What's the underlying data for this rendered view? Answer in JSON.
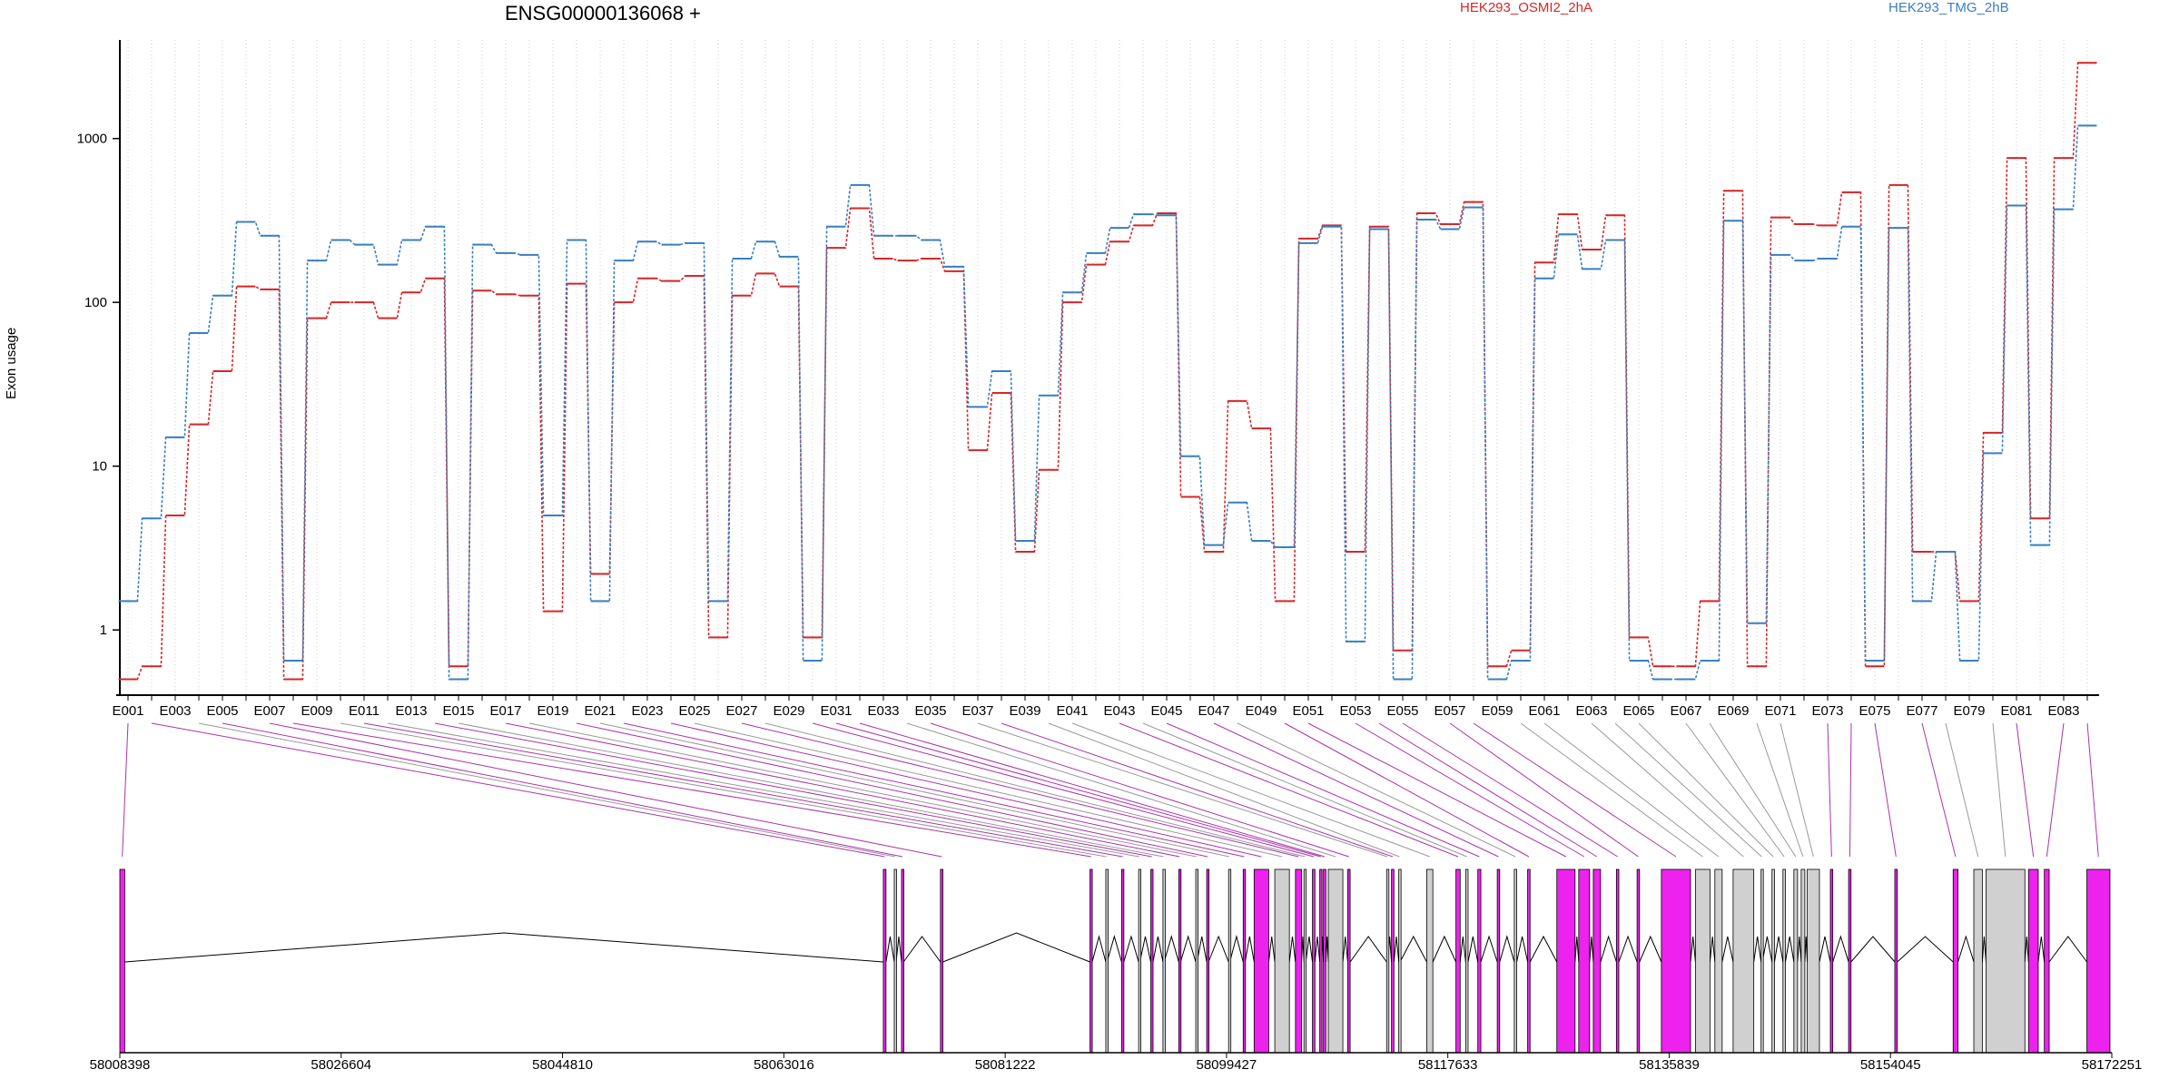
{
  "chart_data": {
    "type": "line",
    "title": "ENSG00000136068 +",
    "ylabel": "Exon usage",
    "xlabel": "",
    "yscale": "log",
    "ylim": [
      0.4,
      4000
    ],
    "yticks": [
      1,
      10,
      100,
      1000
    ],
    "grid": "vertical dotted lines at each exon",
    "legend_placement": "top",
    "series": [
      {
        "name": "HEK293_OSMI2_2hA",
        "color": "#d62728",
        "values": [
          0.5,
          0.6,
          5,
          18,
          38,
          125,
          120,
          0.5,
          80,
          100,
          100,
          80,
          115,
          140,
          0.6,
          118,
          112,
          110,
          1.3,
          130,
          2.2,
          100,
          140,
          135,
          145,
          0.9,
          110,
          150,
          125,
          0.9,
          215,
          375,
          185,
          180,
          185,
          155,
          12.5,
          28,
          3,
          9.5,
          100,
          170,
          235,
          295,
          350,
          6.5,
          3,
          25,
          17,
          1.5,
          245,
          295,
          3,
          290,
          0.75,
          350,
          300,
          410,
          0.6,
          0.75,
          175,
          345,
          210,
          340,
          0.9,
          0.6,
          0.6,
          1.5,
          480,
          0.6,
          330,
          300,
          295,
          470,
          0.6,
          520,
          3,
          3,
          1.5,
          16,
          760,
          4.8,
          760,
          2900
        ]
      },
      {
        "name": "HEK293_TMG_2hB",
        "color": "#3a7fc1",
        "values": [
          1.5,
          4.8,
          15,
          65,
          110,
          310,
          255,
          0.65,
          180,
          240,
          225,
          170,
          240,
          290,
          0.5,
          225,
          200,
          195,
          5,
          240,
          1.5,
          180,
          235,
          225,
          230,
          1.5,
          185,
          235,
          190,
          0.65,
          290,
          520,
          255,
          255,
          240,
          165,
          23,
          38,
          3.5,
          27,
          115,
          200,
          285,
          345,
          340,
          11.5,
          3.3,
          6,
          3.5,
          3.2,
          230,
          290,
          0.85,
          280,
          0.5,
          320,
          280,
          380,
          0.5,
          0.65,
          140,
          260,
          160,
          240,
          0.65,
          0.5,
          0.5,
          0.65,
          315,
          1.1,
          195,
          180,
          185,
          290,
          0.65,
          285,
          1.5,
          3,
          0.65,
          12,
          390,
          3.3,
          370,
          1200
        ]
      }
    ],
    "exon_tick_labels": [
      "E001",
      "E003",
      "E005",
      "E007",
      "E009",
      "E011",
      "E013",
      "E015",
      "E017",
      "E019",
      "E021",
      "E023",
      "E025",
      "E027",
      "E029",
      "E031",
      "E033",
      "E035",
      "E037",
      "E039",
      "E041",
      "E043",
      "E045",
      "E047",
      "E049",
      "E051",
      "E053",
      "E055",
      "E057",
      "E059",
      "E061",
      "E063",
      "E065",
      "E067",
      "E069",
      "E071",
      "E073",
      "E075",
      "E077",
      "E079",
      "E081",
      "E083"
    ],
    "genomic_axis": {
      "start": 58008398,
      "end": 58172251,
      "tick_labels": [
        "58008398",
        "58026604",
        "58044810",
        "58063016",
        "58081222",
        "58099427",
        "58117633",
        "58135839",
        "58154045",
        "58172251"
      ]
    },
    "gene_model": {
      "exons": [
        {
          "start": 58008398,
          "end": 58008800,
          "color": "#ee22ee"
        },
        {
          "start": 58071200,
          "end": 58071420,
          "color": "#ee22ee"
        },
        {
          "start": 58072100,
          "end": 58072250,
          "color": "#d0d0d0"
        },
        {
          "start": 58072700,
          "end": 58072860,
          "color": "#ee22ee"
        },
        {
          "start": 58075900,
          "end": 58076100,
          "color": "#ee22ee"
        },
        {
          "start": 58088200,
          "end": 58088380,
          "color": "#ee22ee"
        },
        {
          "start": 58089500,
          "end": 58089600,
          "color": "#d0d0d0"
        },
        {
          "start": 58090800,
          "end": 58090980,
          "color": "#ee22ee"
        },
        {
          "start": 58092200,
          "end": 58092300,
          "color": "#d0d0d0"
        },
        {
          "start": 58093200,
          "end": 58093380,
          "color": "#ee22ee"
        },
        {
          "start": 58094200,
          "end": 58094300,
          "color": "#d0d0d0"
        },
        {
          "start": 58095500,
          "end": 58095650,
          "color": "#ee22ee"
        },
        {
          "start": 58096900,
          "end": 58097000,
          "color": "#d0d0d0"
        },
        {
          "start": 58097800,
          "end": 58097950,
          "color": "#ee22ee"
        },
        {
          "start": 58099600,
          "end": 58099700,
          "color": "#d0d0d0"
        },
        {
          "start": 58100800,
          "end": 58100960,
          "color": "#ee22ee"
        },
        {
          "start": 58101700,
          "end": 58102900,
          "color": "#ee22ee"
        },
        {
          "start": 58103400,
          "end": 58104600,
          "color": "#d0d0d0"
        },
        {
          "start": 58105100,
          "end": 58105600,
          "color": "#ee22ee"
        },
        {
          "start": 58105800,
          "end": 58105950,
          "color": "#d0d0d0"
        },
        {
          "start": 58106500,
          "end": 58106700,
          "color": "#ee22ee"
        },
        {
          "start": 58107100,
          "end": 58107250,
          "color": "#ee22ee"
        },
        {
          "start": 58107400,
          "end": 58107600,
          "color": "#ee22ee"
        },
        {
          "start": 58107800,
          "end": 58109000,
          "color": "#d0d0d0"
        },
        {
          "start": 58109400,
          "end": 58109600,
          "color": "#ee22ee"
        },
        {
          "start": 58112600,
          "end": 58112700,
          "color": "#d0d0d0"
        },
        {
          "start": 58113000,
          "end": 58113200,
          "color": "#ee22ee"
        },
        {
          "start": 58113600,
          "end": 58113700,
          "color": "#d0d0d0"
        },
        {
          "start": 58115900,
          "end": 58116400,
          "color": "#d0d0d0"
        },
        {
          "start": 58118300,
          "end": 58118650,
          "color": "#ee22ee"
        },
        {
          "start": 58119100,
          "end": 58119300,
          "color": "#d0d0d0"
        },
        {
          "start": 58120100,
          "end": 58120350,
          "color": "#ee22ee"
        },
        {
          "start": 58121700,
          "end": 58121900,
          "color": "#ee22ee"
        },
        {
          "start": 58123100,
          "end": 58123300,
          "color": "#d0d0d0"
        },
        {
          "start": 58124200,
          "end": 58124400,
          "color": "#ee22ee"
        },
        {
          "start": 58126600,
          "end": 58128100,
          "color": "#ee22ee"
        },
        {
          "start": 58128400,
          "end": 58129300,
          "color": "#ee22ee"
        },
        {
          "start": 58129600,
          "end": 58130200,
          "color": "#ee22ee"
        },
        {
          "start": 58131500,
          "end": 58131700,
          "color": "#ee22ee"
        },
        {
          "start": 58133200,
          "end": 58133400,
          "color": "#ee22ee"
        },
        {
          "start": 58135200,
          "end": 58137600,
          "color": "#ee22ee"
        },
        {
          "start": 58138000,
          "end": 58139200,
          "color": "#d0d0d0"
        },
        {
          "start": 58139600,
          "end": 58140200,
          "color": "#d0d0d0"
        },
        {
          "start": 58141100,
          "end": 58142800,
          "color": "#d0d0d0"
        },
        {
          "start": 58143400,
          "end": 58143500,
          "color": "#d0d0d0"
        },
        {
          "start": 58144300,
          "end": 58144500,
          "color": "#d0d0d0"
        },
        {
          "start": 58145200,
          "end": 58145400,
          "color": "#d0d0d0"
        },
        {
          "start": 58146100,
          "end": 58146400,
          "color": "#d0d0d0"
        },
        {
          "start": 58146700,
          "end": 58147000,
          "color": "#d0d0d0"
        },
        {
          "start": 58147200,
          "end": 58148200,
          "color": "#d0d0d0"
        },
        {
          "start": 58149100,
          "end": 58149300,
          "color": "#ee22ee"
        },
        {
          "start": 58150600,
          "end": 58150800,
          "color": "#ee22ee"
        },
        {
          "start": 58154400,
          "end": 58154600,
          "color": "#ee22ee"
        },
        {
          "start": 58159200,
          "end": 58159600,
          "color": "#ee22ee"
        },
        {
          "start": 58160900,
          "end": 58161600,
          "color": "#d0d0d0"
        },
        {
          "start": 58161900,
          "end": 58165100,
          "color": "#d0d0d0"
        },
        {
          "start": 58165400,
          "end": 58166200,
          "color": "#ee22ee"
        },
        {
          "start": 58166700,
          "end": 58167100,
          "color": "#ee22ee"
        },
        {
          "start": 58170200,
          "end": 58172100,
          "color": "#ee22ee"
        }
      ],
      "intron_line_color": "#000000",
      "connector_colors": [
        "#aa33aa",
        "#999999"
      ]
    }
  }
}
